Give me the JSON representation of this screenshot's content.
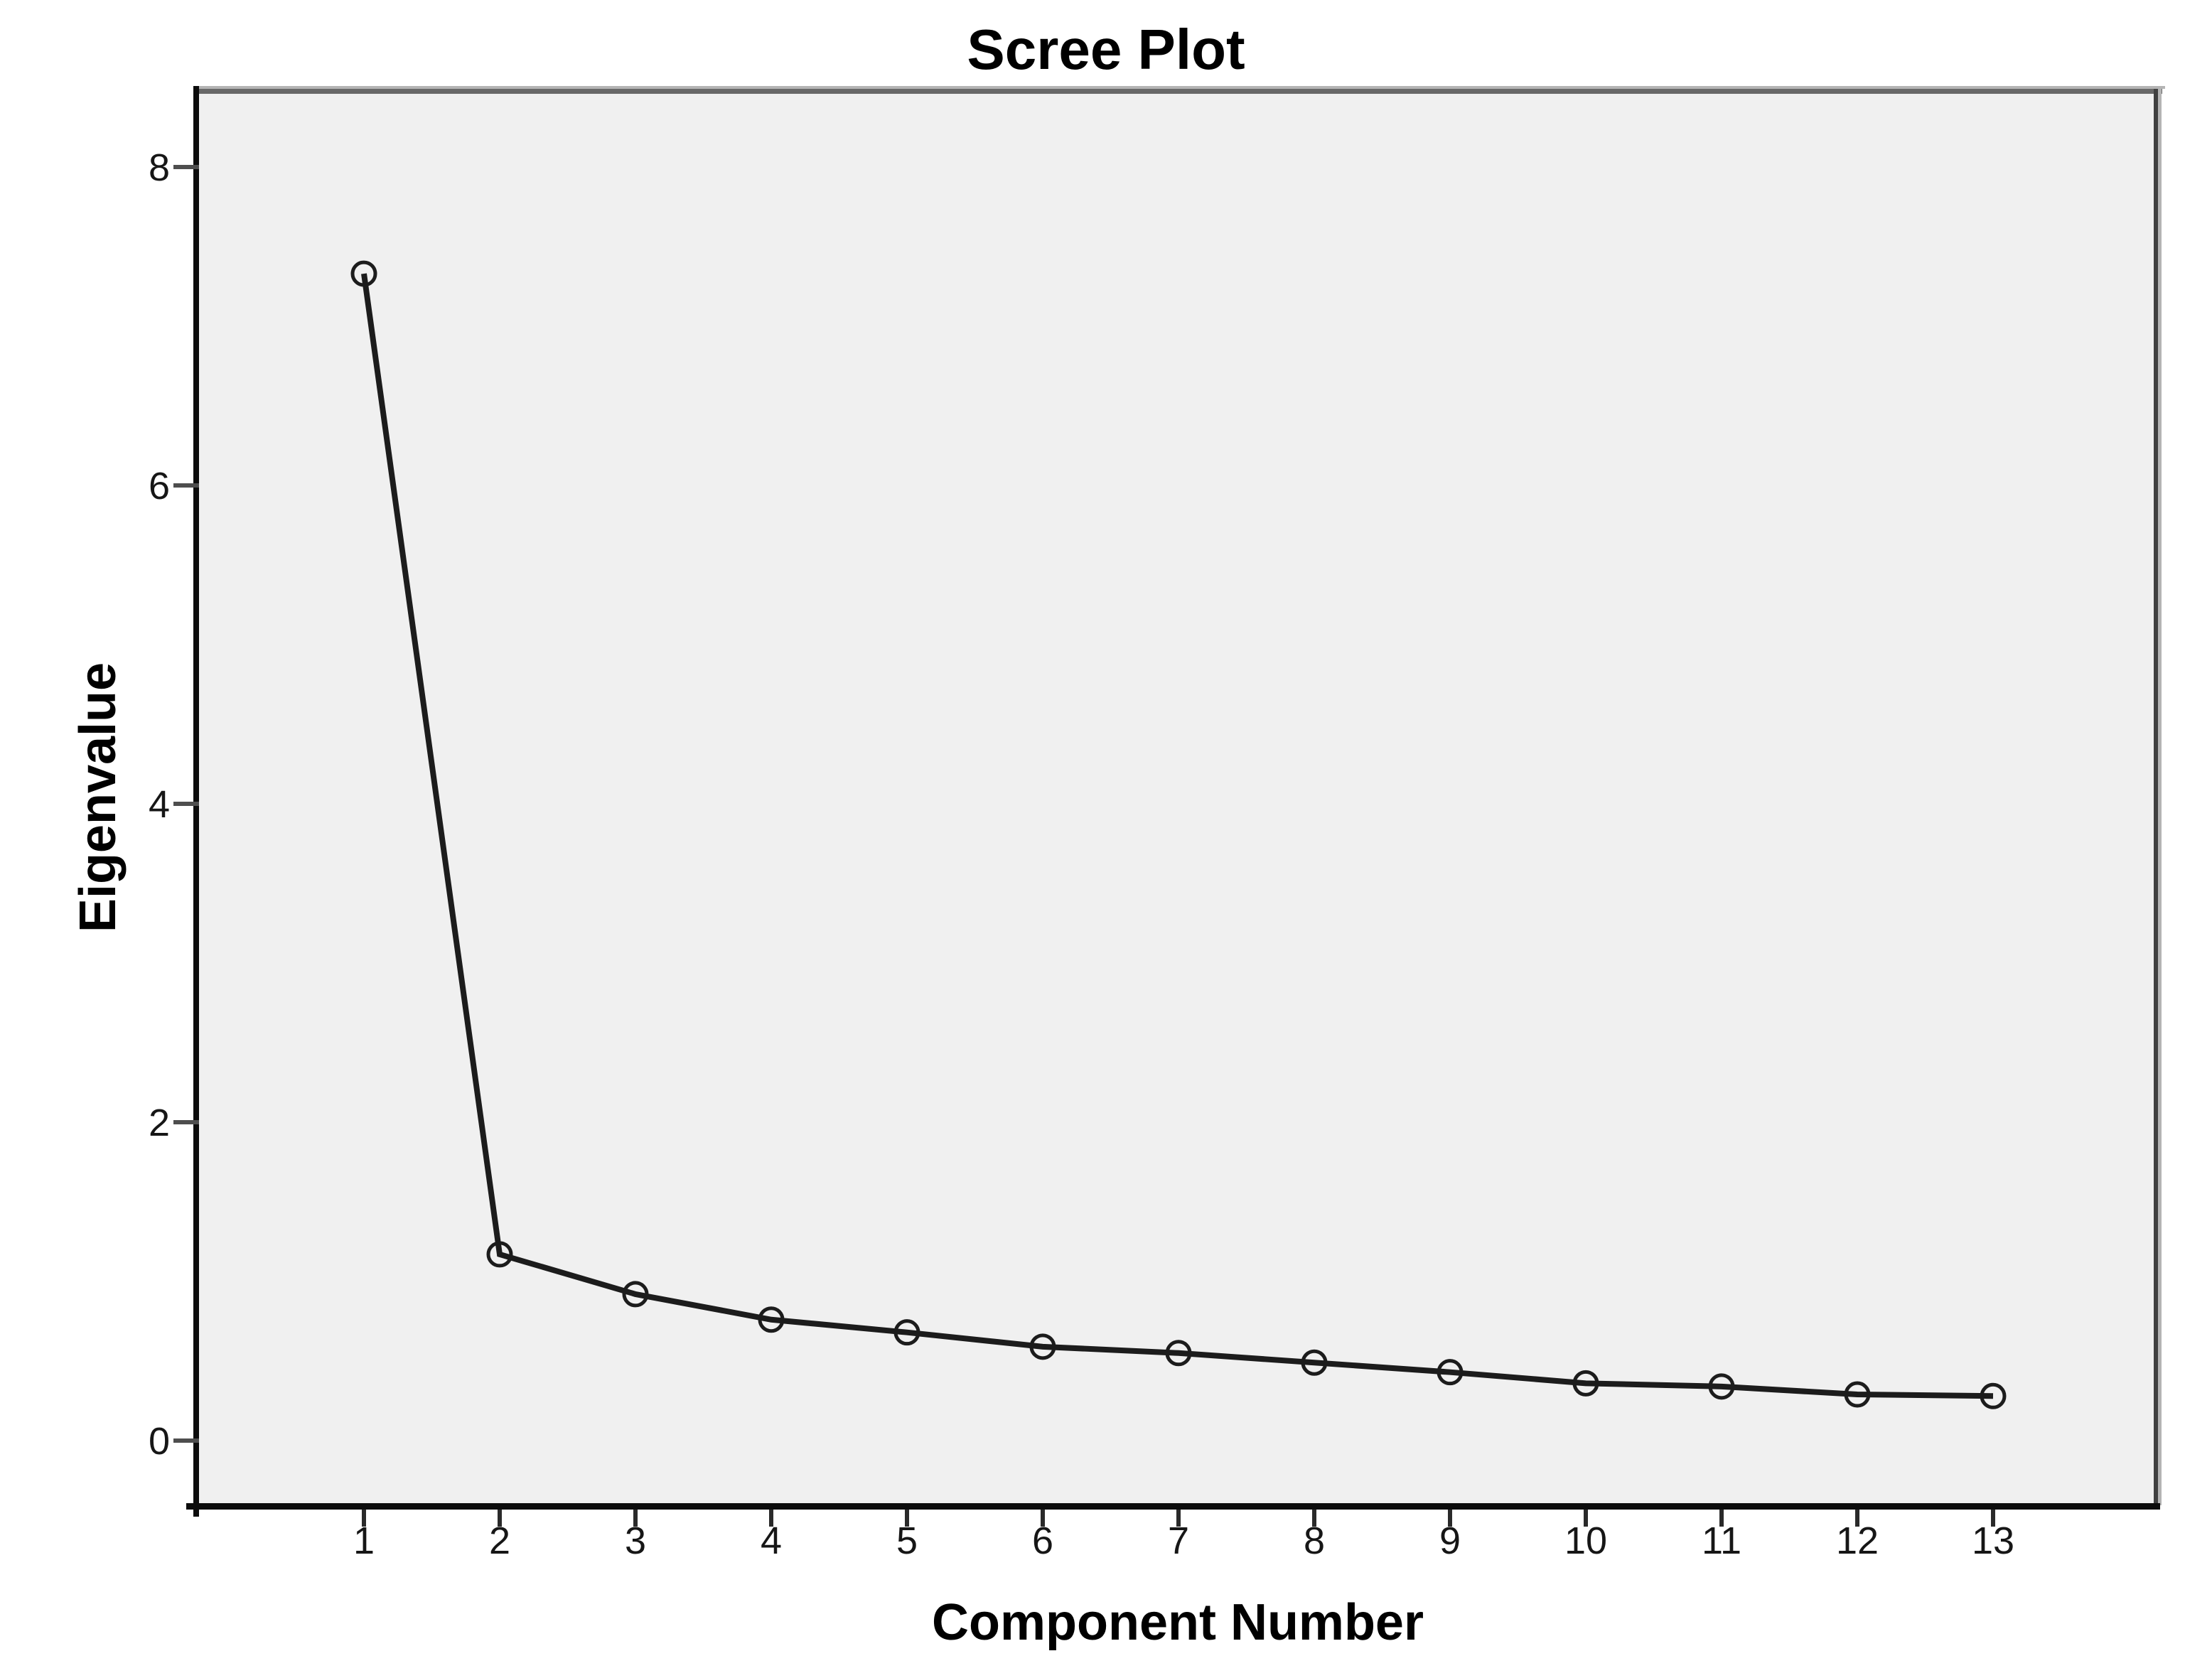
{
  "chart_data": {
    "type": "line",
    "title": "Scree Plot",
    "xlabel": "Component Number",
    "ylabel": "Eigenvalue",
    "x": [
      1,
      2,
      3,
      4,
      5,
      6,
      7,
      8,
      9,
      10,
      11,
      12,
      13
    ],
    "values": [
      7.33,
      1.17,
      0.92,
      0.76,
      0.68,
      0.59,
      0.55,
      0.49,
      0.43,
      0.36,
      0.34,
      0.29,
      0.28
    ],
    "x_ticks": [
      "1",
      "2",
      "3",
      "4",
      "5",
      "6",
      "7",
      "8",
      "9",
      "10",
      "11",
      "12",
      "13"
    ],
    "y_ticks": [
      "0",
      "2",
      "4",
      "6",
      "8"
    ],
    "y_tick_values": [
      0,
      2,
      4,
      6,
      8
    ],
    "xlim": [
      -0.22,
      14.07
    ],
    "ylim": [
      -0.39,
      8.47
    ],
    "grid": false,
    "marker": "open-circle",
    "colors": {
      "line": "#1c1c1c",
      "marker_stroke": "#1c1c1c",
      "plot_background": "#f0f0f0",
      "page_background": "#ffffff",
      "axis_black": "#0c0c0c",
      "frame_gray_top": "#686868",
      "frame_gray_right": "#404040",
      "frame_highlight": "#b4b4b4",
      "y_tick_mark": "#4e4e4e",
      "x_tick_mark": "#2a2a2a",
      "text": "#000000"
    }
  }
}
